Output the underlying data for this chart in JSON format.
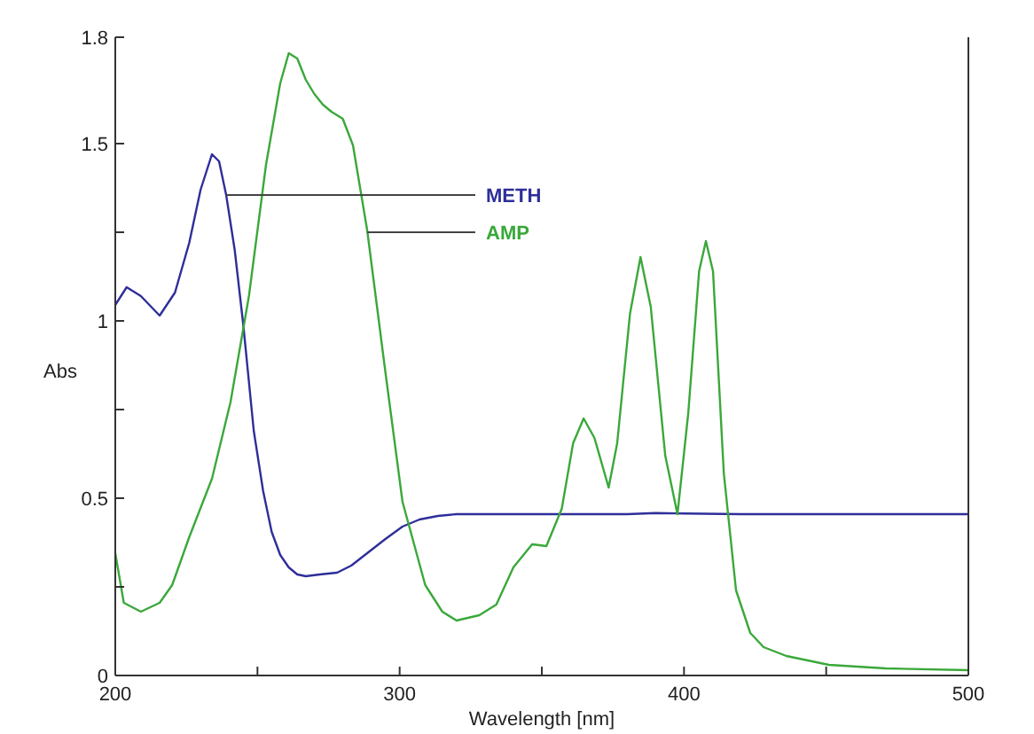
{
  "chart_data": {
    "type": "line",
    "xlabel": "Wavelength [nm]",
    "ylabel": "Abs",
    "xlim": [
      200,
      500
    ],
    "xticks": [
      200,
      {
        "value": 250,
        "label": null
      },
      300,
      {
        "value": 350,
        "label": null
      },
      400,
      {
        "value": 450,
        "label": null
      },
      500
    ],
    "ylim": [
      0,
      1.8
    ],
    "yticks": [
      0,
      {
        "value": 0.25,
        "label": null
      },
      0.5,
      {
        "value": 0.75,
        "label": null
      },
      1,
      {
        "value": 1.25,
        "label": null
      },
      1.5,
      1.8
    ],
    "grid": false,
    "legend": false,
    "marker": "none",
    "line_style": "solid",
    "series": [
      {
        "name": "METH",
        "color": "#2e2e9a",
        "x": [
          200,
          204,
          209,
          215.6,
          221,
          226,
          230,
          234,
          236.5,
          239,
          242,
          245,
          248.7,
          252,
          255,
          258,
          261,
          264,
          267,
          272,
          278,
          283,
          288.6,
          295,
          301,
          307,
          313.5,
          320,
          340,
          360,
          380,
          390,
          400,
          420,
          450,
          500
        ],
        "values": [
          1.045,
          1.095,
          1.07,
          1.015,
          1.08,
          1.22,
          1.37,
          1.47,
          1.45,
          1.355,
          1.2,
          0.99,
          0.69,
          0.52,
          0.405,
          0.34,
          0.305,
          0.285,
          0.28,
          0.285,
          0.29,
          0.31,
          0.345,
          0.385,
          0.42,
          0.44,
          0.45,
          0.455,
          0.455,
          0.455,
          0.455,
          0.458,
          0.457,
          0.455,
          0.455,
          0.455
        ]
      },
      {
        "name": "AMP",
        "color": "#3aa83a",
        "x": [
          200,
          203,
          209,
          215.6,
          220,
          226,
          234,
          240.5,
          247,
          253,
          258,
          261,
          264,
          267,
          270,
          273,
          276,
          280,
          283.6,
          288.6,
          295,
          301,
          309,
          315,
          320,
          328,
          334,
          340,
          346.6,
          351.6,
          357,
          361,
          364.7,
          368.5,
          373.5,
          376.5,
          381,
          384.7,
          388.3,
          393.4,
          397.7,
          401.5,
          405.3,
          407.7,
          410.2,
          414,
          418.3,
          423.3,
          428,
          436,
          451,
          471,
          500
        ],
        "values": [
          0.345,
          0.205,
          0.18,
          0.205,
          0.255,
          0.39,
          0.555,
          0.77,
          1.07,
          1.44,
          1.67,
          1.755,
          1.74,
          1.68,
          1.64,
          1.61,
          1.59,
          1.57,
          1.495,
          1.255,
          0.855,
          0.49,
          0.255,
          0.18,
          0.155,
          0.17,
          0.2,
          0.305,
          0.37,
          0.365,
          0.47,
          0.655,
          0.725,
          0.67,
          0.53,
          0.655,
          1.02,
          1.18,
          1.04,
          0.62,
          0.455,
          0.74,
          1.14,
          1.225,
          1.14,
          0.57,
          0.24,
          0.12,
          0.08,
          0.055,
          0.03,
          0.02,
          0.015
        ]
      }
    ]
  }
}
